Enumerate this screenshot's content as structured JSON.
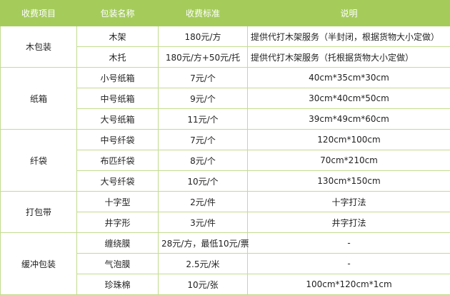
{
  "header": [
    "收费项目",
    "包装名称",
    "收费标准",
    "说明"
  ],
  "colors": {
    "header_bg": "#a5cc5b",
    "border": "#c3dc8e"
  },
  "groups": [
    {
      "category": "木包装",
      "rows": [
        {
          "name": "木架",
          "price": "180元/方",
          "note": "提供代打木架服务（半封闭，根据货物大小定做）",
          "align": "left"
        },
        {
          "name": "木托",
          "price": "180元/方+50元/托",
          "note": "提供代打木架服务（托根据货物大小定做）",
          "align": "left"
        }
      ]
    },
    {
      "category": "纸箱",
      "rows": [
        {
          "name": "小号纸箱",
          "price": "7元/个",
          "note": "40cm*35cm*30cm"
        },
        {
          "name": "中号纸箱",
          "price": "9元/个",
          "note": "30cm*40cm*50cm"
        },
        {
          "name": "大号纸箱",
          "price": "11元/个",
          "note": "39cm*49cm*60cm"
        }
      ]
    },
    {
      "category": "纤袋",
      "rows": [
        {
          "name": "中号纤袋",
          "price": "7元/个",
          "note": "120cm*100cm"
        },
        {
          "name": "布匹纤袋",
          "price": "8元/个",
          "note": "70cm*210cm"
        },
        {
          "name": "大号纤袋",
          "price": "10元/个",
          "note": "130cm*150cm"
        }
      ]
    },
    {
      "category": "打包带",
      "rows": [
        {
          "name": "十字型",
          "price": "2元/件",
          "note": "十字打法"
        },
        {
          "name": "井字形",
          "price": "3元/件",
          "note": "井字打法"
        }
      ]
    },
    {
      "category": "缓冲包装",
      "rows": [
        {
          "name": "缠绕膜",
          "price": "28元/方，最低10元/票",
          "note": "-"
        },
        {
          "name": "气泡膜",
          "price": "2.5元/米",
          "note": "-"
        },
        {
          "name": "珍珠棉",
          "price": "10元/张",
          "note": "100cm*120cm*1cm"
        }
      ]
    }
  ]
}
